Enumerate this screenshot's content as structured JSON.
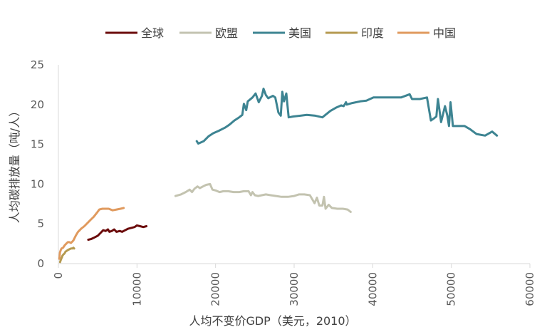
{
  "chart_data": {
    "type": "line",
    "xlabel": "人均不变价GDP（美元，2010）",
    "ylabel": "人均碳排放量（吨/人）",
    "xlim": [
      0,
      60000
    ],
    "ylim": [
      0,
      25
    ],
    "xticks": [
      "0",
      "10000",
      "20000",
      "30000",
      "40000",
      "50000",
      "60000"
    ],
    "yticks": [
      "0",
      "5",
      "10",
      "15",
      "20",
      "25"
    ],
    "grid": false,
    "legend_position": "top",
    "series": [
      {
        "name": "全球",
        "color": "#6b0b0b",
        "points": [
          [
            3800,
            3.0
          ],
          [
            4200,
            3.1
          ],
          [
            4600,
            3.3
          ],
          [
            5000,
            3.5
          ],
          [
            5400,
            3.9
          ],
          [
            5700,
            4.2
          ],
          [
            6000,
            4.1
          ],
          [
            6300,
            4.3
          ],
          [
            6500,
            4.0
          ],
          [
            6800,
            4.1
          ],
          [
            7100,
            4.3
          ],
          [
            7400,
            4.0
          ],
          [
            7800,
            4.1
          ],
          [
            8100,
            4.0
          ],
          [
            8500,
            4.2
          ],
          [
            8900,
            4.4
          ],
          [
            9300,
            4.5
          ],
          [
            9700,
            4.6
          ],
          [
            10000,
            4.8
          ],
          [
            10400,
            4.7
          ],
          [
            10800,
            4.6
          ],
          [
            11200,
            4.7
          ]
        ]
      },
      {
        "name": "欧盟",
        "color": "#c3c3b0",
        "points": [
          [
            14900,
            8.5
          ],
          [
            15600,
            8.7
          ],
          [
            16200,
            9.0
          ],
          [
            16700,
            9.3
          ],
          [
            17000,
            9.0
          ],
          [
            17300,
            9.4
          ],
          [
            17700,
            9.7
          ],
          [
            18000,
            9.5
          ],
          [
            18400,
            9.7
          ],
          [
            18800,
            9.9
          ],
          [
            19300,
            10.0
          ],
          [
            19600,
            9.3
          ],
          [
            20000,
            9.2
          ],
          [
            20500,
            9.0
          ],
          [
            21000,
            9.1
          ],
          [
            21600,
            9.1
          ],
          [
            22300,
            9.0
          ],
          [
            23000,
            9.0
          ],
          [
            23600,
            9.1
          ],
          [
            24200,
            9.1
          ],
          [
            24500,
            8.6
          ],
          [
            24700,
            9.0
          ],
          [
            25000,
            8.6
          ],
          [
            25400,
            8.5
          ],
          [
            25900,
            8.6
          ],
          [
            26400,
            8.7
          ],
          [
            27000,
            8.6
          ],
          [
            27700,
            8.5
          ],
          [
            28400,
            8.4
          ],
          [
            29200,
            8.4
          ],
          [
            30000,
            8.5
          ],
          [
            30600,
            8.7
          ],
          [
            31300,
            8.7
          ],
          [
            32000,
            8.6
          ],
          [
            32600,
            7.6
          ],
          [
            32900,
            8.3
          ],
          [
            33200,
            7.3
          ],
          [
            33600,
            7.3
          ],
          [
            33800,
            8.4
          ],
          [
            34000,
            6.9
          ],
          [
            34400,
            7.4
          ],
          [
            34800,
            7.0
          ],
          [
            35500,
            6.9
          ],
          [
            36200,
            6.9
          ],
          [
            36800,
            6.8
          ],
          [
            37200,
            6.5
          ]
        ]
      },
      {
        "name": "美国",
        "color": "#3d8492",
        "points": [
          [
            17600,
            15.4
          ],
          [
            17800,
            15.1
          ],
          [
            18500,
            15.4
          ],
          [
            19100,
            16.0
          ],
          [
            19700,
            16.4
          ],
          [
            20400,
            16.7
          ],
          [
            21200,
            17.1
          ],
          [
            21800,
            17.5
          ],
          [
            22400,
            18.0
          ],
          [
            23000,
            18.4
          ],
          [
            23400,
            18.7
          ],
          [
            23600,
            20.1
          ],
          [
            23900,
            19.3
          ],
          [
            24100,
            20.4
          ],
          [
            24700,
            20.9
          ],
          [
            25100,
            21.4
          ],
          [
            25500,
            20.3
          ],
          [
            25900,
            21.1
          ],
          [
            26100,
            22.0
          ],
          [
            26400,
            21.2
          ],
          [
            26700,
            20.8
          ],
          [
            27300,
            21.1
          ],
          [
            27600,
            20.9
          ],
          [
            28000,
            19.0
          ],
          [
            28300,
            18.6
          ],
          [
            28500,
            21.6
          ],
          [
            28700,
            20.4
          ],
          [
            29000,
            21.4
          ],
          [
            29300,
            18.4
          ],
          [
            29900,
            18.5
          ],
          [
            30800,
            18.6
          ],
          [
            31600,
            18.7
          ],
          [
            32700,
            18.6
          ],
          [
            33600,
            18.4
          ],
          [
            34600,
            19.2
          ],
          [
            35300,
            19.6
          ],
          [
            36000,
            19.9
          ],
          [
            36300,
            19.8
          ],
          [
            36600,
            20.3
          ],
          [
            36700,
            20.0
          ],
          [
            37400,
            20.2
          ],
          [
            38400,
            20.4
          ],
          [
            39200,
            20.5
          ],
          [
            40100,
            20.9
          ],
          [
            41200,
            20.9
          ],
          [
            42400,
            20.9
          ],
          [
            43600,
            20.9
          ],
          [
            44700,
            21.3
          ],
          [
            45000,
            20.7
          ],
          [
            46000,
            20.7
          ],
          [
            46900,
            20.9
          ],
          [
            47400,
            18.0
          ],
          [
            47700,
            18.2
          ],
          [
            48100,
            18.5
          ],
          [
            48300,
            20.7
          ],
          [
            48700,
            17.8
          ],
          [
            49200,
            19.8
          ],
          [
            49500,
            18.6
          ],
          [
            49700,
            17.3
          ],
          [
            49900,
            20.3
          ],
          [
            50200,
            17.3
          ],
          [
            50900,
            17.3
          ],
          [
            51700,
            17.3
          ],
          [
            52400,
            16.9
          ],
          [
            53200,
            16.3
          ],
          [
            54300,
            16.1
          ],
          [
            55200,
            16.6
          ],
          [
            55800,
            16.1
          ]
        ]
      },
      {
        "name": "印度",
        "color": "#b59a50",
        "points": [
          [
            220,
            0.2
          ],
          [
            280,
            0.4
          ],
          [
            330,
            0.5
          ],
          [
            400,
            0.7
          ],
          [
            450,
            0.8
          ],
          [
            520,
            1.0
          ],
          [
            600,
            1.1
          ],
          [
            700,
            1.2
          ],
          [
            800,
            1.3
          ],
          [
            900,
            1.5
          ],
          [
            1050,
            1.6
          ],
          [
            1200,
            1.7
          ],
          [
            1400,
            1.8
          ],
          [
            1600,
            1.9
          ],
          [
            1800,
            1.9
          ],
          [
            1900,
            2.0
          ],
          [
            2000,
            1.9
          ]
        ]
      },
      {
        "name": "中国",
        "color": "#e09a5e",
        "points": [
          [
            120,
            0.6
          ],
          [
            150,
            0.9
          ],
          [
            200,
            1.4
          ],
          [
            300,
            1.7
          ],
          [
            400,
            1.9
          ],
          [
            600,
            2.0
          ],
          [
            800,
            2.3
          ],
          [
            1000,
            2.5
          ],
          [
            1200,
            2.7
          ],
          [
            1400,
            2.7
          ],
          [
            1600,
            2.6
          ],
          [
            1900,
            2.9
          ],
          [
            2200,
            3.5
          ],
          [
            2500,
            4.0
          ],
          [
            2900,
            4.4
          ],
          [
            3300,
            4.7
          ],
          [
            3700,
            5.1
          ],
          [
            4100,
            5.5
          ],
          [
            4500,
            5.9
          ],
          [
            4900,
            6.4
          ],
          [
            5200,
            6.8
          ],
          [
            5600,
            6.9
          ],
          [
            6000,
            6.9
          ],
          [
            6400,
            6.9
          ],
          [
            6900,
            6.7
          ],
          [
            7400,
            6.8
          ],
          [
            7900,
            6.9
          ],
          [
            8300,
            7.0
          ]
        ]
      }
    ]
  }
}
